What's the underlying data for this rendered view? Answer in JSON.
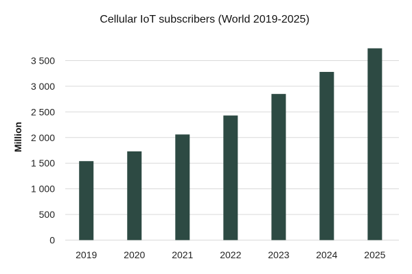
{
  "chart_data": {
    "type": "bar",
    "title": "Cellular IoT subscribers (World 2019-2025)",
    "xlabel": "",
    "ylabel": "Million",
    "categories": [
      "2019",
      "2020",
      "2021",
      "2022",
      "2023",
      "2024",
      "2025"
    ],
    "values": [
      1540,
      1730,
      2060,
      2430,
      2850,
      3280,
      3740
    ],
    "ylim": [
      0,
      3500
    ],
    "yticks": [
      0,
      500,
      1000,
      1500,
      2000,
      2500,
      3000,
      3500
    ],
    "ytick_labels": [
      "0",
      "500",
      "1 000",
      "1 500",
      "2 000",
      "2 500",
      "3 000",
      "3 500"
    ],
    "grid": true,
    "bar_color": "#2d4a43",
    "grid_color": "#d9d9d9"
  }
}
